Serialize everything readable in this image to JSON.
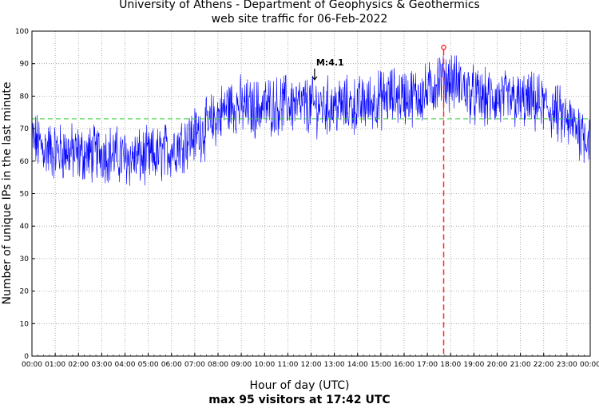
{
  "chart_data": {
    "type": "line",
    "title": "University of Athens - Department of Geophysics & Geothermics",
    "subtitle": "web site traffic for 06-Feb-2022",
    "xlabel": "Hour of day (UTC)",
    "ylabel": "Number of unique IPs in the last minute",
    "footer": "max 95 visitors at 17:42 UTC",
    "xlim": [
      0,
      24
    ],
    "ylim": [
      0,
      100
    ],
    "x_ticks": [
      "00:00",
      "01:00",
      "02:00",
      "03:00",
      "04:00",
      "05:00",
      "06:00",
      "07:00",
      "08:00",
      "09:00",
      "10:00",
      "11:00",
      "12:00",
      "13:00",
      "14:00",
      "15:00",
      "16:00",
      "17:00",
      "18:00",
      "19:00",
      "20:00",
      "21:00",
      "22:00",
      "23:00",
      "00:00"
    ],
    "y_ticks": [
      0,
      10,
      20,
      30,
      40,
      50,
      60,
      70,
      80,
      90,
      100
    ],
    "grid": true,
    "mean_line": 73,
    "max": {
      "hour": 17.7,
      "value": 95
    },
    "annotation": {
      "text": "M:4.1",
      "hour": 12.15,
      "value": 88
    },
    "series": [
      {
        "x": [
          0,
          0.5,
          1,
          1.5,
          2,
          2.5,
          3,
          3.5,
          4,
          4.5,
          5,
          5.5,
          6,
          6.5,
          7,
          7.5,
          8,
          8.5,
          9,
          9.5,
          10,
          10.5,
          11,
          11.5,
          12,
          12.5,
          13,
          13.5,
          14,
          14.5,
          15,
          15.5,
          16,
          16.5,
          17,
          17.5,
          18,
          18.5,
          19,
          19.5,
          20,
          20.5,
          21,
          21.5,
          22,
          22.5,
          23,
          23.5,
          24
        ],
        "values": [
          67,
          64,
          63,
          63,
          62,
          62,
          63,
          62,
          61,
          61,
          61,
          62,
          64,
          66,
          68,
          70,
          74,
          77,
          77,
          76,
          77,
          77,
          78,
          77,
          77,
          77,
          77,
          77,
          77,
          78,
          79,
          80,
          80,
          80,
          81,
          85,
          85,
          83,
          80,
          79,
          79,
          79,
          78,
          78,
          77,
          75,
          72,
          70,
          67
        ],
        "color": "#0000ff"
      }
    ]
  }
}
